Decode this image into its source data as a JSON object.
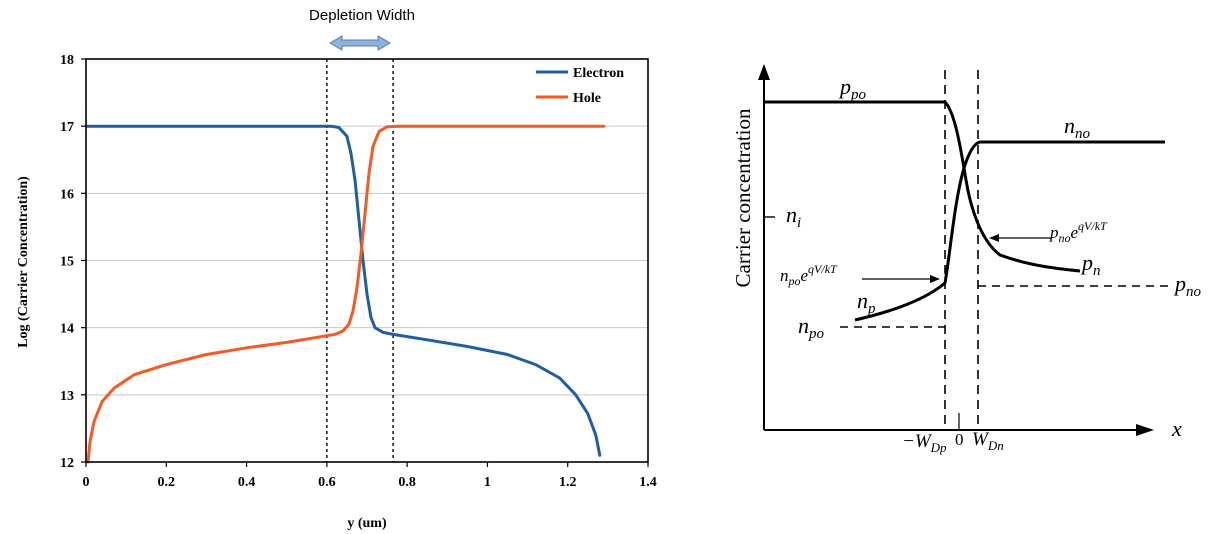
{
  "chart_data": [
    {
      "type": "line",
      "annotation": "Depletion Width",
      "xlabel": "y (um)",
      "ylabel": "Log (Carrier Concentration)",
      "xlim": [
        0,
        1.4
      ],
      "ylim": [
        12,
        18
      ],
      "xticks": [
        "0",
        "0.2",
        "0.4",
        "0.6",
        "0.8",
        "1",
        "1.2",
        "1.4"
      ],
      "yticks": [
        "12",
        "13",
        "14",
        "15",
        "16",
        "17",
        "18"
      ],
      "grid": "horizontal",
      "legend_position": "top-right",
      "depletion_edges": [
        0.6,
        0.765
      ],
      "series": [
        {
          "name": "Electron",
          "color": "#1f5f9f",
          "points": [
            [
              0,
              17
            ],
            [
              0.55,
              17
            ],
            [
              0.61,
              17
            ],
            [
              0.63,
              16.98
            ],
            [
              0.65,
              16.85
            ],
            [
              0.66,
              16.6
            ],
            [
              0.67,
              16.2
            ],
            [
              0.68,
              15.6
            ],
            [
              0.69,
              15.0
            ],
            [
              0.7,
              14.5
            ],
            [
              0.71,
              14.15
            ],
            [
              0.72,
              14.0
            ],
            [
              0.74,
              13.93
            ],
            [
              0.765,
              13.9
            ],
            [
              0.85,
              13.82
            ],
            [
              0.95,
              13.72
            ],
            [
              1.05,
              13.6
            ],
            [
              1.12,
              13.45
            ],
            [
              1.18,
              13.25
            ],
            [
              1.22,
              13.0
            ],
            [
              1.25,
              12.72
            ],
            [
              1.27,
              12.4
            ],
            [
              1.28,
              12.1
            ]
          ]
        },
        {
          "name": "Hole",
          "color": "#f55a24",
          "points": [
            [
              0.005,
              12.0
            ],
            [
              0.01,
              12.3
            ],
            [
              0.02,
              12.6
            ],
            [
              0.04,
              12.9
            ],
            [
              0.07,
              13.1
            ],
            [
              0.12,
              13.3
            ],
            [
              0.2,
              13.45
            ],
            [
              0.3,
              13.6
            ],
            [
              0.4,
              13.7
            ],
            [
              0.5,
              13.78
            ],
            [
              0.6,
              13.88
            ],
            [
              0.62,
              13.9
            ],
            [
              0.64,
              13.95
            ],
            [
              0.655,
              14.05
            ],
            [
              0.665,
              14.25
            ],
            [
              0.675,
              14.6
            ],
            [
              0.685,
              15.1
            ],
            [
              0.695,
              15.7
            ],
            [
              0.705,
              16.3
            ],
            [
              0.715,
              16.7
            ],
            [
              0.73,
              16.92
            ],
            [
              0.75,
              16.99
            ],
            [
              0.78,
              17
            ],
            [
              1.0,
              17
            ],
            [
              1.29,
              17
            ]
          ]
        }
      ]
    },
    {
      "type": "line",
      "ylabel": "Carrier concentration",
      "xlabel": "x",
      "xticks": [
        "−W",
        "Dp",
        "0",
        "W",
        "Dn"
      ],
      "annotations": {
        "ppo": {
          "main": "p",
          "sub": "po"
        },
        "nno": {
          "main": "n",
          "sub": "no"
        },
        "ni": {
          "main": "n",
          "sub": "i"
        },
        "np": {
          "main": "n",
          "sub": "p"
        },
        "pn": {
          "main": "p",
          "sub": "n"
        },
        "npo": {
          "main": "n",
          "sub": "po"
        },
        "pno": {
          "main": "p",
          "sub": "no"
        },
        "npo_exp": {
          "main": "n",
          "sub": "po",
          "base": "e",
          "sup": "qV/kT"
        },
        "pno_exp": {
          "main": "p",
          "sub": "no",
          "base": "e",
          "sup": "qV/kT"
        }
      }
    }
  ]
}
